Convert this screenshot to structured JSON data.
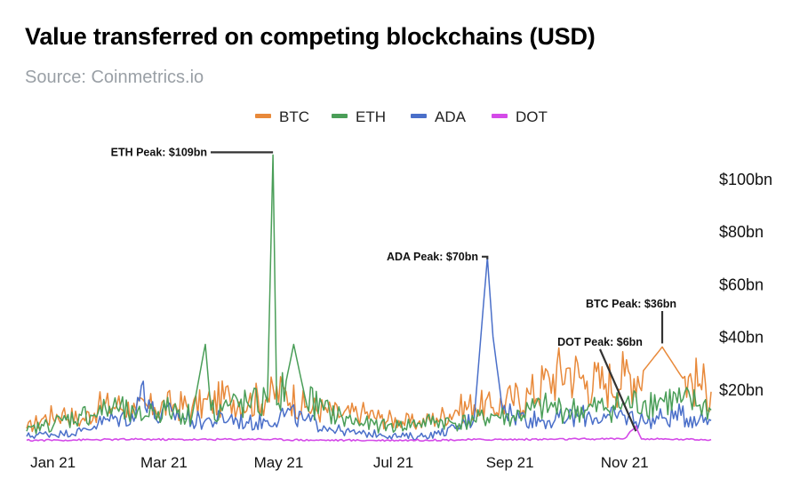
{
  "title": "Value transferred on competing blockchains (USD)",
  "subtitle": "Source: Coinmetrics.io",
  "chart_data": {
    "type": "line",
    "title": "Value transferred on competing blockchains (USD)",
    "subtitle": "Source: Coinmetrics.io",
    "xlabel": "",
    "ylabel": "",
    "y_unit": "bn USD",
    "ylim": [
      0,
      115
    ],
    "grid": false,
    "legend_position": "top",
    "y_axis_side": "right",
    "x_tick_labels": [
      "Jan 21",
      "Mar 21",
      "May 21",
      "Jul 21",
      "Sep 21",
      "Nov 21"
    ],
    "x_tick_dates": [
      "2021-01-15",
      "2021-03-15",
      "2021-05-15",
      "2021-07-15",
      "2021-09-15",
      "2021-11-15"
    ],
    "y_tick_labels": [
      "$20bn",
      "$40bn",
      "$60bn",
      "$80bn",
      "$100bn"
    ],
    "y_tick_values": [
      20,
      40,
      60,
      80,
      100
    ],
    "x_range": [
      "2021-01-01",
      "2021-12-31"
    ],
    "series": [
      {
        "name": "BTC",
        "color": "#e8893a",
        "points": [
          [
            "2021-01-01",
            5
          ],
          [
            "2021-01-10",
            9
          ],
          [
            "2021-01-20",
            11
          ],
          [
            "2021-01-30",
            8
          ],
          [
            "2021-02-08",
            13
          ],
          [
            "2021-02-18",
            14
          ],
          [
            "2021-02-28",
            12
          ],
          [
            "2021-03-10",
            13
          ],
          [
            "2021-03-20",
            14
          ],
          [
            "2021-03-30",
            13
          ],
          [
            "2021-04-09",
            15
          ],
          [
            "2021-04-19",
            17
          ],
          [
            "2021-04-29",
            15
          ],
          [
            "2021-05-09",
            17
          ],
          [
            "2021-05-19",
            19
          ],
          [
            "2021-05-29",
            13
          ],
          [
            "2021-06-08",
            12
          ],
          [
            "2021-06-18",
            10
          ],
          [
            "2021-06-28",
            11
          ],
          [
            "2021-07-08",
            9
          ],
          [
            "2021-07-18",
            8
          ],
          [
            "2021-07-28",
            7
          ],
          [
            "2021-08-07",
            9
          ],
          [
            "2021-08-17",
            12
          ],
          [
            "2021-08-27",
            14
          ],
          [
            "2021-09-06",
            13
          ],
          [
            "2021-09-16",
            16
          ],
          [
            "2021-09-26",
            18
          ],
          [
            "2021-10-06",
            24
          ],
          [
            "2021-10-16",
            28
          ],
          [
            "2021-10-26",
            23
          ],
          [
            "2021-11-05",
            22
          ],
          [
            "2021-11-15",
            25
          ],
          [
            "2021-11-25",
            27
          ],
          [
            "2021-12-05",
            36
          ],
          [
            "2021-12-15",
            25
          ],
          [
            "2021-12-25",
            22
          ],
          [
            "2021-12-31",
            19
          ]
        ]
      },
      {
        "name": "ETH",
        "color": "#4a9e58",
        "points": [
          [
            "2021-01-01",
            4
          ],
          [
            "2021-01-10",
            6
          ],
          [
            "2021-01-20",
            8
          ],
          [
            "2021-01-30",
            10
          ],
          [
            "2021-02-08",
            11
          ],
          [
            "2021-02-18",
            13
          ],
          [
            "2021-02-28",
            9
          ],
          [
            "2021-03-10",
            12
          ],
          [
            "2021-03-20",
            12
          ],
          [
            "2021-03-30",
            10
          ],
          [
            "2021-04-06",
            37
          ],
          [
            "2021-04-09",
            12
          ],
          [
            "2021-04-19",
            14
          ],
          [
            "2021-04-29",
            14
          ],
          [
            "2021-05-09",
            15
          ],
          [
            "2021-05-12",
            109
          ],
          [
            "2021-05-14",
            14
          ],
          [
            "2021-05-19",
            23
          ],
          [
            "2021-05-23",
            37
          ],
          [
            "2021-05-29",
            17
          ],
          [
            "2021-06-08",
            12
          ],
          [
            "2021-06-18",
            9
          ],
          [
            "2021-06-28",
            7
          ],
          [
            "2021-07-08",
            6
          ],
          [
            "2021-07-18",
            6
          ],
          [
            "2021-07-28",
            7
          ],
          [
            "2021-08-07",
            8
          ],
          [
            "2021-08-17",
            7
          ],
          [
            "2021-08-27",
            8
          ],
          [
            "2021-09-06",
            10
          ],
          [
            "2021-09-16",
            9
          ],
          [
            "2021-09-26",
            12
          ],
          [
            "2021-10-06",
            13
          ],
          [
            "2021-10-16",
            12
          ],
          [
            "2021-10-26",
            12
          ],
          [
            "2021-11-05",
            13
          ],
          [
            "2021-11-15",
            14
          ],
          [
            "2021-11-25",
            15
          ],
          [
            "2021-12-05",
            16
          ],
          [
            "2021-12-15",
            15
          ],
          [
            "2021-12-25",
            14
          ],
          [
            "2021-12-31",
            12
          ]
        ]
      },
      {
        "name": "ADA",
        "color": "#4a6fc9",
        "points": [
          [
            "2021-01-01",
            2
          ],
          [
            "2021-01-10",
            3
          ],
          [
            "2021-01-20",
            3
          ],
          [
            "2021-01-30",
            4
          ],
          [
            "2021-02-08",
            7
          ],
          [
            "2021-02-18",
            9
          ],
          [
            "2021-02-28",
            10
          ],
          [
            "2021-03-04",
            23
          ],
          [
            "2021-03-10",
            9
          ],
          [
            "2021-03-20",
            11
          ],
          [
            "2021-03-30",
            8
          ],
          [
            "2021-04-09",
            8
          ],
          [
            "2021-04-19",
            9
          ],
          [
            "2021-04-29",
            7
          ],
          [
            "2021-05-09",
            8
          ],
          [
            "2021-05-19",
            11
          ],
          [
            "2021-05-29",
            8
          ],
          [
            "2021-06-08",
            6
          ],
          [
            "2021-06-18",
            4
          ],
          [
            "2021-06-28",
            3
          ],
          [
            "2021-07-08",
            3
          ],
          [
            "2021-07-18",
            2
          ],
          [
            "2021-07-28",
            2
          ],
          [
            "2021-08-07",
            3
          ],
          [
            "2021-08-17",
            5
          ],
          [
            "2021-08-27",
            9
          ],
          [
            "2021-09-03",
            70
          ],
          [
            "2021-09-06",
            40
          ],
          [
            "2021-09-10",
            18
          ],
          [
            "2021-09-16",
            10
          ],
          [
            "2021-09-26",
            9
          ],
          [
            "2021-10-06",
            8
          ],
          [
            "2021-10-16",
            9
          ],
          [
            "2021-10-26",
            10
          ],
          [
            "2021-11-05",
            9
          ],
          [
            "2021-11-15",
            10
          ],
          [
            "2021-11-25",
            8
          ],
          [
            "2021-12-05",
            9
          ],
          [
            "2021-12-15",
            10
          ],
          [
            "2021-12-25",
            9
          ],
          [
            "2021-12-31",
            8
          ]
        ]
      },
      {
        "name": "DOT",
        "color": "#d44ae8",
        "points": [
          [
            "2021-01-01",
            0.5
          ],
          [
            "2021-02-01",
            0.7
          ],
          [
            "2021-03-01",
            0.9
          ],
          [
            "2021-04-01",
            0.8
          ],
          [
            "2021-05-01",
            1.0
          ],
          [
            "2021-06-01",
            0.6
          ],
          [
            "2021-07-01",
            0.5
          ],
          [
            "2021-08-01",
            0.6
          ],
          [
            "2021-09-01",
            0.8
          ],
          [
            "2021-10-01",
            0.9
          ],
          [
            "2021-11-01",
            1.0
          ],
          [
            "2021-11-15",
            1.2
          ],
          [
            "2021-11-21",
            6
          ],
          [
            "2021-11-24",
            1.0
          ],
          [
            "2021-12-15",
            0.9
          ],
          [
            "2021-12-31",
            0.8
          ]
        ]
      }
    ],
    "annotations": [
      {
        "text": "ETH Peak: $109bn",
        "series": "ETH",
        "date": "2021-05-12",
        "value": 109
      },
      {
        "text": "ADA Peak: $70bn",
        "series": "ADA",
        "date": "2021-09-03",
        "value": 70
      },
      {
        "text": "BTC Peak: $36bn",
        "series": "BTC",
        "date": "2021-12-05",
        "value": 36
      },
      {
        "text": "DOT Peak: $6bn",
        "series": "DOT",
        "date": "2021-11-21",
        "value": 6
      }
    ]
  }
}
